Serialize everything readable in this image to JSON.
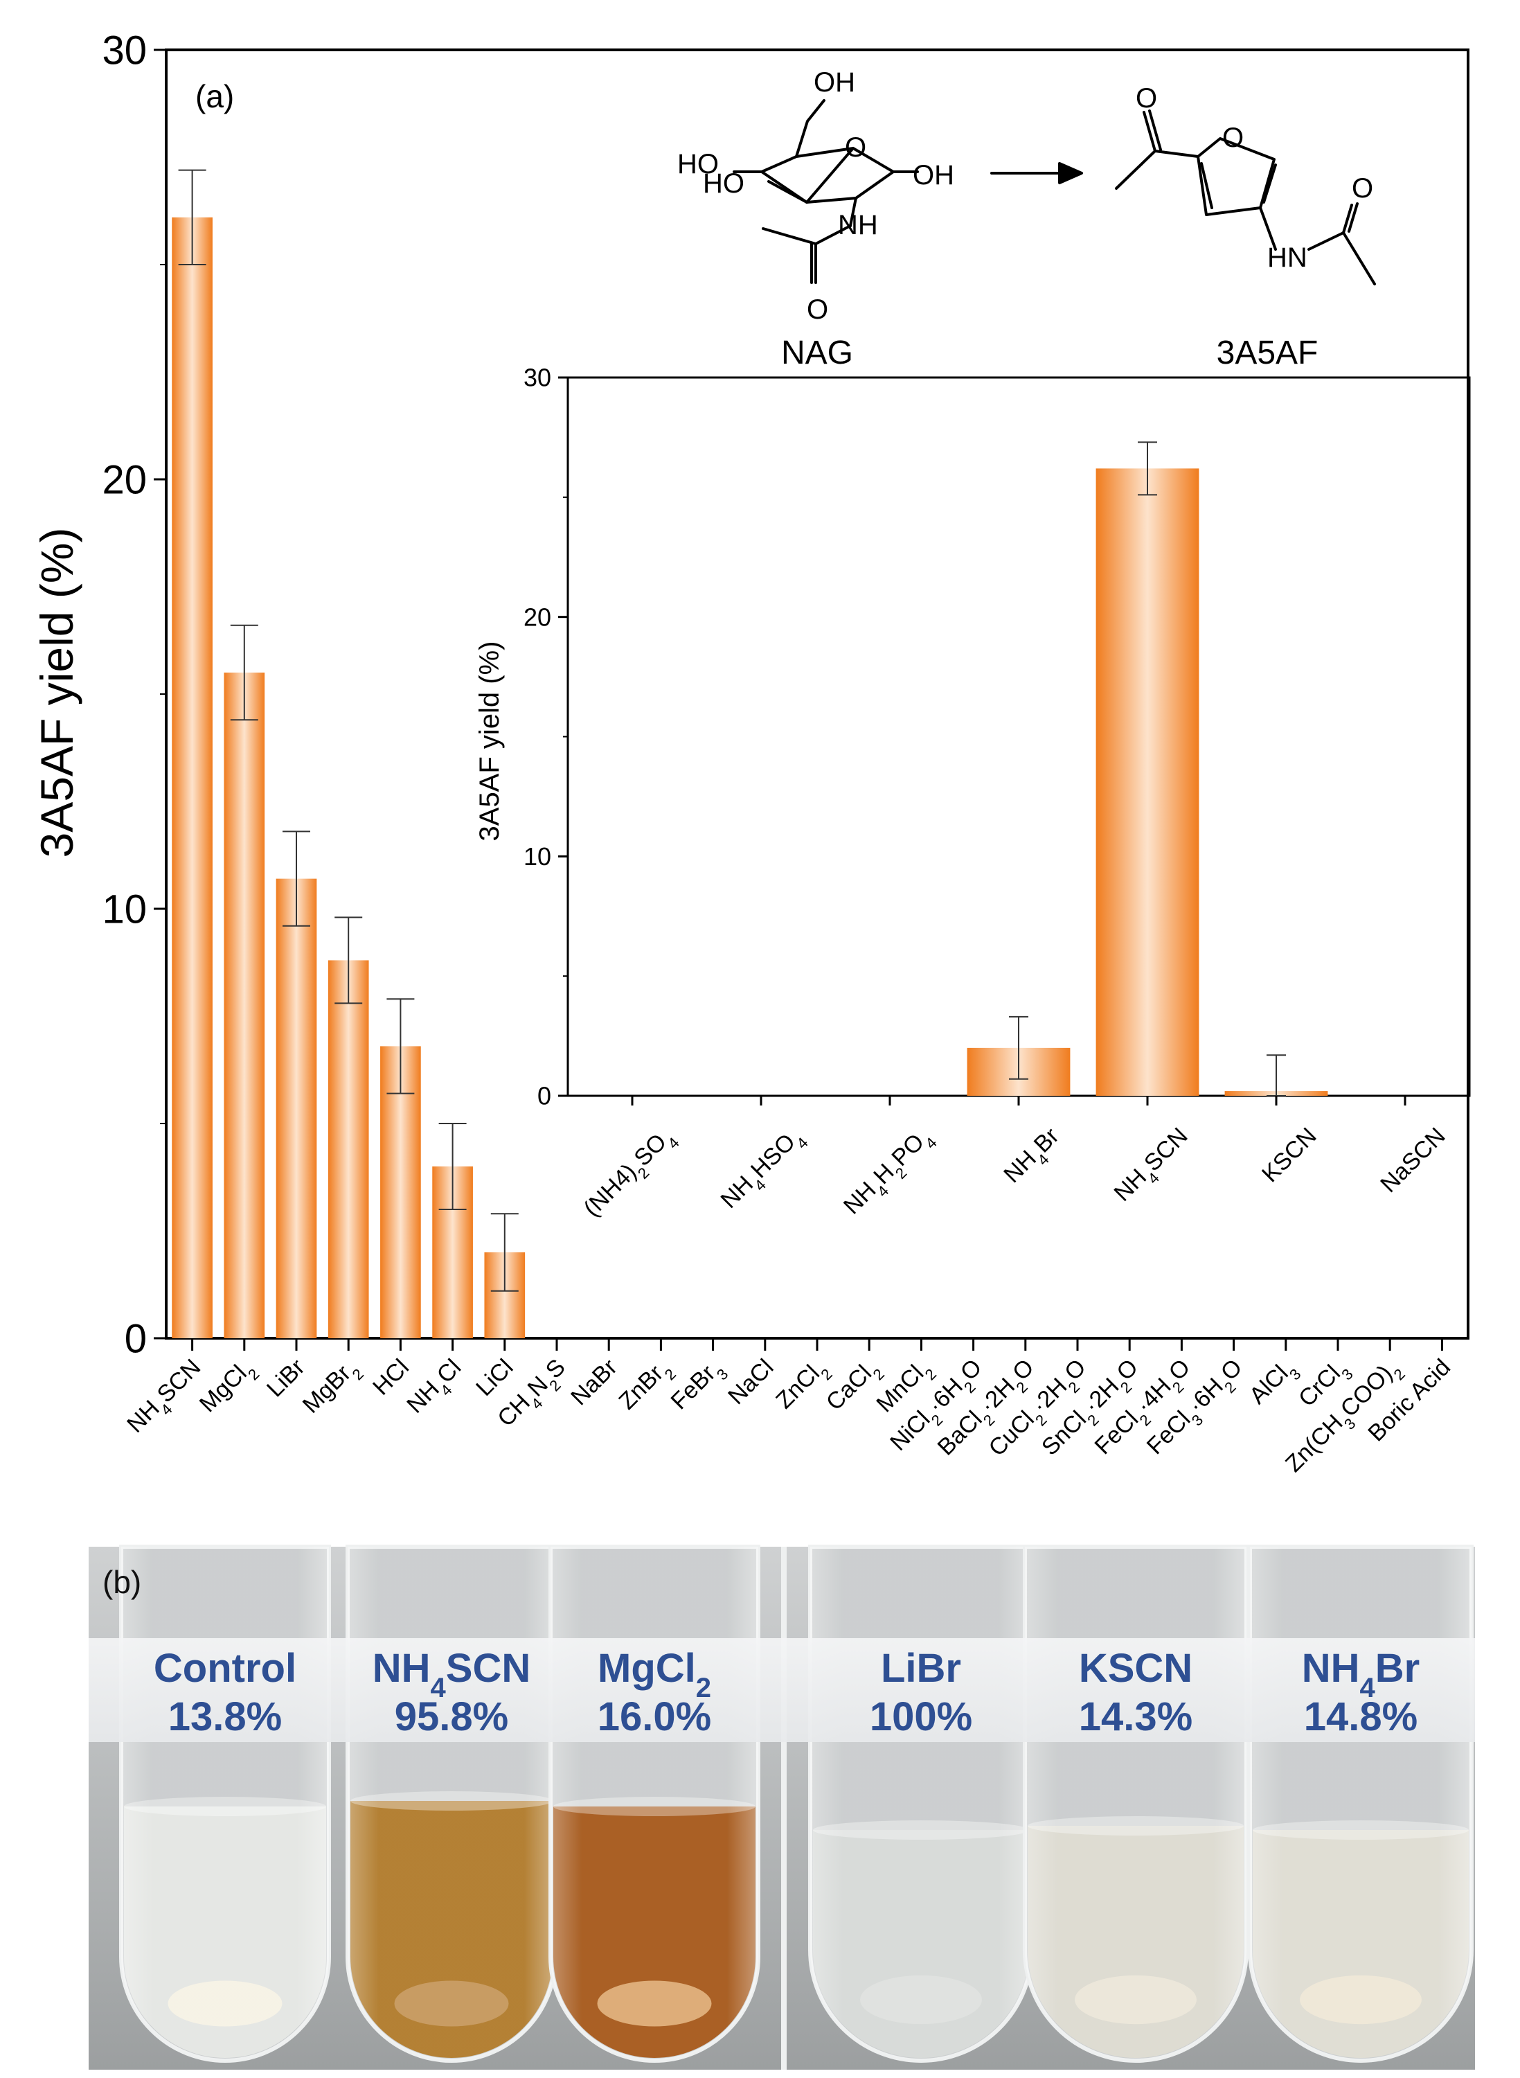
{
  "panel_a_label": "(a)",
  "panel_b_label": "(b)",
  "scheme": {
    "reactant_label": "NAG",
    "product_label": "3A5AF",
    "atoms": [
      "OH",
      "HO",
      "HO",
      "O",
      "OH",
      "NH",
      "O",
      "O",
      "O",
      "HN",
      "O"
    ]
  },
  "colors": {
    "bar_edge": "#f07c1e",
    "bar_center": "#fde3cc",
    "axis": "#000000",
    "label_blue": "#2e4f93"
  },
  "chart_data": [
    {
      "type": "bar",
      "ylabel": "3A5AF yield (%)",
      "ylim": [
        0,
        30
      ],
      "yticks": [
        "0",
        "10",
        "20",
        "30"
      ],
      "categories": [
        {
          "t": "NH",
          "sub": "4",
          "t2": "SCN"
        },
        {
          "t": "MgCl",
          "sub": "2"
        },
        {
          "t": "LiBr"
        },
        {
          "t": "MgBr",
          "sub": "2"
        },
        {
          "t": "HCl"
        },
        {
          "t": "NH",
          "sub": "4",
          "t2": "Cl"
        },
        {
          "t": "LiCl"
        },
        {
          "t": "CH",
          "sub": "4",
          "t2": "N",
          "sub2": "2",
          "t3": "S"
        },
        {
          "t": "NaBr"
        },
        {
          "t": "ZnBr",
          "sub": "2"
        },
        {
          "t": "FeBr",
          "sub": "3"
        },
        {
          "t": "NaCl"
        },
        {
          "t": "ZnCl",
          "sub": "2"
        },
        {
          "t": "CaCl",
          "sub": "2"
        },
        {
          "t": "MnCl",
          "sub": "2"
        },
        {
          "t": "NiCl",
          "sub": "2",
          "t2": "·6H",
          "sub2": "2",
          "t3": "O"
        },
        {
          "t": "BaCl",
          "sub": "2",
          "t2": "·2H",
          "sub2": "2",
          "t3": "O"
        },
        {
          "t": "CuCl",
          "sub": "2",
          "t2": "·2H",
          "sub2": "2",
          "t3": "O"
        },
        {
          "t": "SnCl",
          "sub": "2",
          "t2": "·2H",
          "sub2": "2",
          "t3": "O"
        },
        {
          "t": "FeCl",
          "sub": "2",
          "t2": "·4H",
          "sub2": "2",
          "t3": "O"
        },
        {
          "t": "FeCl",
          "sub": "3",
          "t2": "·6H",
          "sub2": "2",
          "t3": "O"
        },
        {
          "t": "AlCl",
          "sub": "3"
        },
        {
          "t": "CrCl",
          "sub": "3"
        },
        {
          "t": "Zn(CH",
          "sub": "3",
          "t2": "COO)",
          "sub2": "2"
        },
        {
          "t": "Boric Acid"
        }
      ],
      "values": [
        26.1,
        15.5,
        10.7,
        8.8,
        6.8,
        4.0,
        2.0,
        0,
        0,
        0,
        0,
        0,
        0,
        0,
        0,
        0,
        0,
        0,
        0,
        0,
        0,
        0,
        0,
        0,
        0
      ],
      "errors": [
        1.1,
        1.1,
        1.1,
        1.0,
        1.1,
        1.0,
        0.9,
        0,
        0,
        0,
        0,
        0,
        0,
        0,
        0,
        0,
        0,
        0,
        0,
        0,
        0,
        0,
        0,
        0,
        0
      ]
    },
    {
      "type": "bar",
      "ylabel": "3A5AF yield (%)",
      "ylim": [
        0,
        30
      ],
      "yticks": [
        "0",
        "10",
        "20",
        "30"
      ],
      "categories": [
        {
          "t": "(NH4)",
          "sub": "2",
          "t2": "SO",
          "sub2": "4"
        },
        {
          "t": "NH",
          "sub": "4",
          "t2": "HSO",
          "sub2": "4"
        },
        {
          "t": "NH",
          "sub": "4",
          "t2": "H",
          "sub2": "2",
          "t3": "PO",
          "sub3": "4"
        },
        {
          "t": "NH",
          "sub": "4",
          "t2": "Br"
        },
        {
          "t": "NH",
          "sub": "4",
          "t2": "SCN"
        },
        {
          "t": "KSCN"
        },
        {
          "t": "NaSCN"
        }
      ],
      "values": [
        0,
        0,
        0,
        2.0,
        26.2,
        0.2,
        0
      ],
      "errors": [
        0,
        0,
        0,
        1.3,
        1.1,
        1.5,
        0
      ]
    }
  ],
  "photo": {
    "tubes": [
      {
        "name": "Control",
        "value": "13.8%",
        "liquid": "#e4e6e3",
        "sediment": "#f7f3e4"
      },
      {
        "name_t": "NH",
        "name_sub": "4",
        "name_t2": "SCN",
        "value": "95.8%",
        "liquid": "#b07a2a",
        "sediment": "#c89a60"
      },
      {
        "name_t": "MgCl",
        "name_sub": "2",
        "value": "16.0%",
        "liquid": "#a5581a",
        "sediment": "#e2b27c"
      },
      {
        "name": "LiBr",
        "value": "100%",
        "liquid": "#d6d9d7",
        "sediment": "#dfe1df"
      },
      {
        "name": "KSCN",
        "value": "14.3%",
        "liquid": "#dcdad0",
        "sediment": "#ece7d8"
      },
      {
        "name_t": "NH",
        "name_sub": "4",
        "name_t2": "Br",
        "value": "14.8%",
        "liquid": "#dedcd2",
        "sediment": "#efe8d6"
      }
    ]
  }
}
